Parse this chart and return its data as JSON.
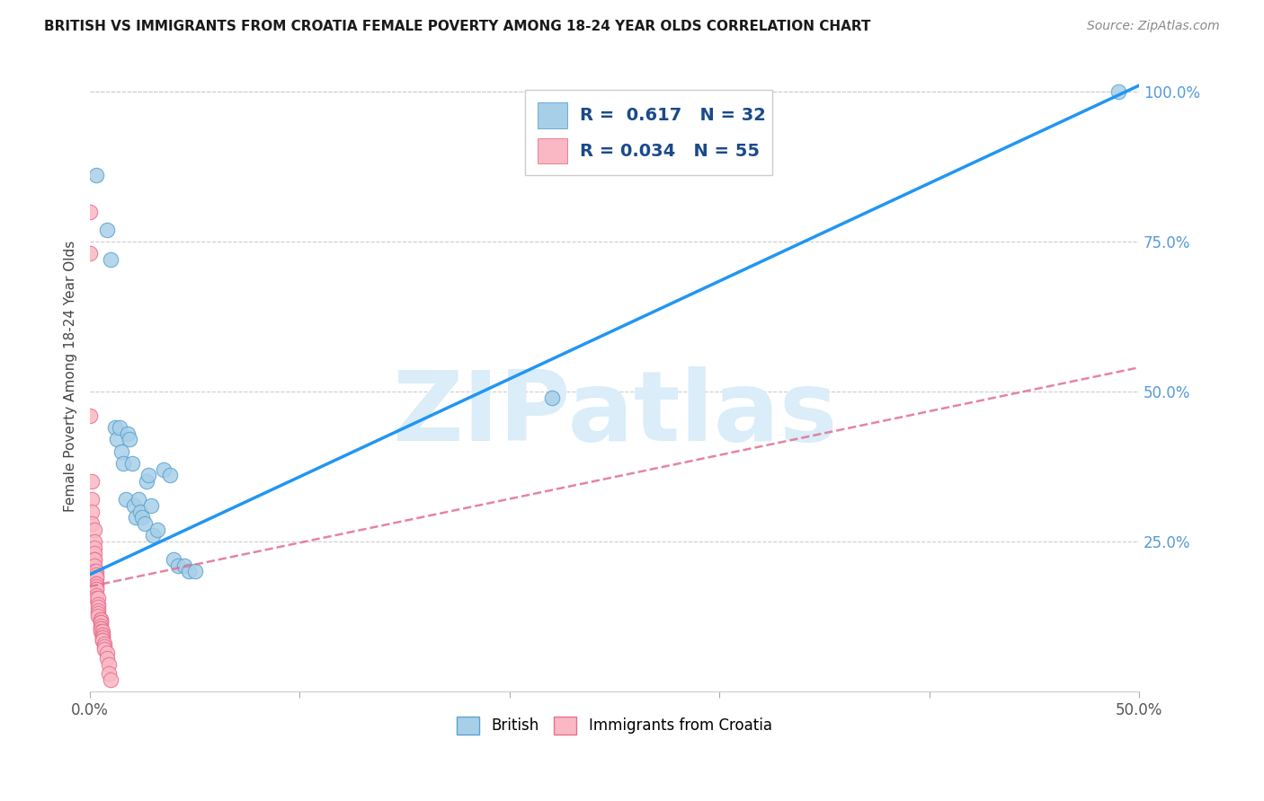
{
  "title": "BRITISH VS IMMIGRANTS FROM CROATIA FEMALE POVERTY AMONG 18-24 YEAR OLDS CORRELATION CHART",
  "source": "Source: ZipAtlas.com",
  "ylabel": "Female Poverty Among 18-24 Year Olds",
  "xlim": [
    0.0,
    0.5
  ],
  "ylim": [
    0.0,
    1.05
  ],
  "x_ticks": [
    0.0,
    0.1,
    0.2,
    0.3,
    0.4,
    0.5
  ],
  "x_tick_labels": [
    "0.0%",
    "",
    "",
    "",
    "",
    "50.0%"
  ],
  "y_ticks_right": [
    0.0,
    0.25,
    0.5,
    0.75,
    1.0
  ],
  "y_tick_labels_right": [
    "",
    "25.0%",
    "50.0%",
    "75.0%",
    "100.0%"
  ],
  "british_color": "#a8cfe8",
  "british_edge_color": "#5ba3d0",
  "croatia_color": "#f9b8c4",
  "croatia_edge_color": "#e87090",
  "british_R": 0.617,
  "british_N": 32,
  "croatia_R": 0.034,
  "croatia_N": 55,
  "trendline_british_color": "#2196F3",
  "trendline_croatia_color": "#e07090",
  "background_color": "#ffffff",
  "watermark": "ZIPatlas",
  "watermark_color": "#daedf8",
  "british_trendline_x0": 0.0,
  "british_trendline_y0": 0.195,
  "british_trendline_x1": 0.5,
  "british_trendline_y1": 1.01,
  "croatia_trendline_x0": 0.0,
  "croatia_trendline_y0": 0.175,
  "croatia_trendline_x1": 0.5,
  "croatia_trendline_y1": 0.54,
  "british_scatter": [
    [
      0.003,
      0.86
    ],
    [
      0.008,
      0.77
    ],
    [
      0.01,
      0.72
    ],
    [
      0.012,
      0.44
    ],
    [
      0.013,
      0.42
    ],
    [
      0.014,
      0.44
    ],
    [
      0.015,
      0.4
    ],
    [
      0.016,
      0.38
    ],
    [
      0.017,
      0.32
    ],
    [
      0.018,
      0.43
    ],
    [
      0.019,
      0.42
    ],
    [
      0.02,
      0.38
    ],
    [
      0.021,
      0.31
    ],
    [
      0.022,
      0.29
    ],
    [
      0.023,
      0.32
    ],
    [
      0.024,
      0.3
    ],
    [
      0.025,
      0.29
    ],
    [
      0.026,
      0.28
    ],
    [
      0.027,
      0.35
    ],
    [
      0.028,
      0.36
    ],
    [
      0.029,
      0.31
    ],
    [
      0.03,
      0.26
    ],
    [
      0.032,
      0.27
    ],
    [
      0.035,
      0.37
    ],
    [
      0.038,
      0.36
    ],
    [
      0.04,
      0.22
    ],
    [
      0.042,
      0.21
    ],
    [
      0.045,
      0.21
    ],
    [
      0.047,
      0.2
    ],
    [
      0.05,
      0.2
    ],
    [
      0.22,
      0.49
    ],
    [
      0.49,
      1.0
    ]
  ],
  "croatia_scatter": [
    [
      0.0,
      0.8
    ],
    [
      0.0,
      0.73
    ],
    [
      0.0,
      0.46
    ],
    [
      0.001,
      0.35
    ],
    [
      0.001,
      0.32
    ],
    [
      0.001,
      0.3
    ],
    [
      0.001,
      0.28
    ],
    [
      0.002,
      0.27
    ],
    [
      0.002,
      0.25
    ],
    [
      0.002,
      0.24
    ],
    [
      0.002,
      0.23
    ],
    [
      0.002,
      0.22
    ],
    [
      0.002,
      0.22
    ],
    [
      0.002,
      0.21
    ],
    [
      0.002,
      0.2
    ],
    [
      0.003,
      0.2
    ],
    [
      0.003,
      0.195
    ],
    [
      0.003,
      0.19
    ],
    [
      0.003,
      0.19
    ],
    [
      0.003,
      0.18
    ],
    [
      0.003,
      0.18
    ],
    [
      0.003,
      0.175
    ],
    [
      0.003,
      0.17
    ],
    [
      0.003,
      0.17
    ],
    [
      0.003,
      0.16
    ],
    [
      0.003,
      0.155
    ],
    [
      0.004,
      0.155
    ],
    [
      0.004,
      0.145
    ],
    [
      0.004,
      0.14
    ],
    [
      0.004,
      0.135
    ],
    [
      0.004,
      0.13
    ],
    [
      0.004,
      0.125
    ],
    [
      0.005,
      0.12
    ],
    [
      0.005,
      0.12
    ],
    [
      0.005,
      0.115
    ],
    [
      0.005,
      0.115
    ],
    [
      0.005,
      0.11
    ],
    [
      0.005,
      0.105
    ],
    [
      0.005,
      0.105
    ],
    [
      0.005,
      0.1
    ],
    [
      0.006,
      0.1
    ],
    [
      0.006,
      0.095
    ],
    [
      0.006,
      0.095
    ],
    [
      0.006,
      0.09
    ],
    [
      0.006,
      0.09
    ],
    [
      0.006,
      0.085
    ],
    [
      0.006,
      0.085
    ],
    [
      0.007,
      0.08
    ],
    [
      0.007,
      0.075
    ],
    [
      0.007,
      0.07
    ],
    [
      0.008,
      0.065
    ],
    [
      0.008,
      0.055
    ],
    [
      0.009,
      0.045
    ],
    [
      0.009,
      0.03
    ],
    [
      0.01,
      0.02
    ]
  ]
}
